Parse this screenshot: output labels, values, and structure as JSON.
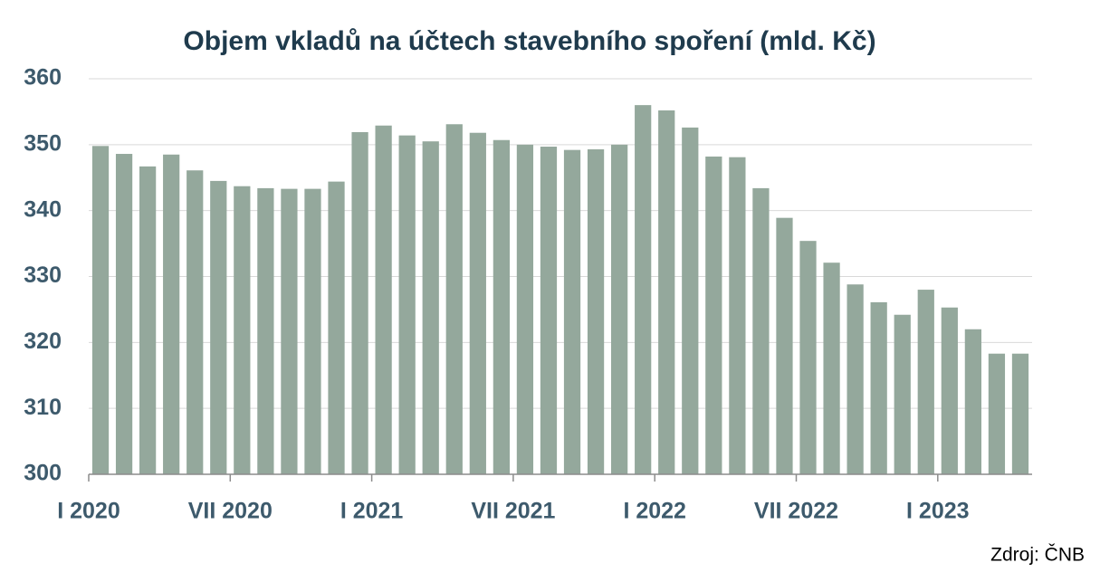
{
  "chart_data": {
    "type": "bar",
    "title": "Objem vkladů na účtech stavebního spoření (mld. Kč)",
    "categories": [
      "I 2020",
      null,
      null,
      null,
      null,
      null,
      "VII 2020",
      null,
      null,
      null,
      null,
      null,
      "I 2021",
      null,
      null,
      null,
      null,
      null,
      "VII 2021",
      null,
      null,
      null,
      null,
      null,
      "I 2022",
      null,
      null,
      null,
      null,
      null,
      "VII 2022",
      null,
      null,
      null,
      null,
      null,
      "I 2023",
      null,
      null,
      null
    ],
    "values": [
      349.8,
      348.6,
      346.7,
      348.5,
      346.1,
      344.5,
      343.7,
      343.4,
      343.3,
      343.3,
      344.4,
      351.9,
      352.9,
      351.4,
      350.5,
      353.1,
      351.8,
      350.7,
      350.0,
      349.7,
      349.2,
      349.3,
      350.0,
      356.0,
      355.2,
      352.6,
      348.2,
      348.1,
      343.4,
      338.9,
      335.4,
      332.1,
      328.8,
      326.1,
      324.2,
      328.0,
      325.3,
      322.0,
      318.3,
      318.3
    ],
    "color": "#94a89c",
    "ylim": [
      300,
      360
    ],
    "yticks": [
      300,
      310,
      320,
      330,
      340,
      350,
      360
    ],
    "grid": true,
    "source": "Zdroj: ČNB"
  }
}
